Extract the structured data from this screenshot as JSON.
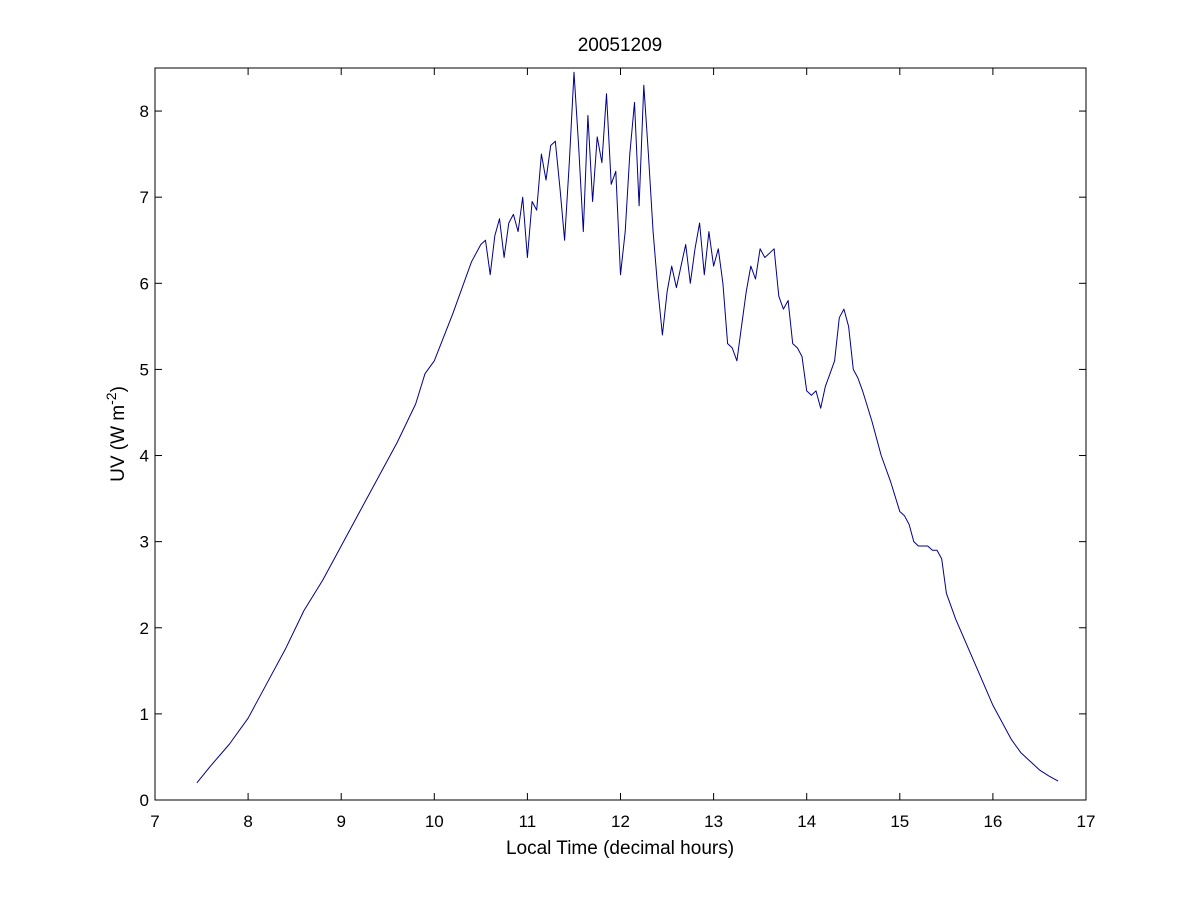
{
  "colors": {
    "series": "#00008b",
    "axes": "#000000",
    "background": "#ffffff"
  },
  "chart_data": {
    "type": "line",
    "title": "20051209",
    "xlabel": "Local Time (decimal hours)",
    "ylabel": "UV (W m",
    "ylabel_superscript": "-2",
    "ylabel_close": ")",
    "xlim": [
      7,
      17
    ],
    "ylim": [
      0,
      8.5
    ],
    "xticks": [
      7,
      8,
      9,
      10,
      11,
      12,
      13,
      14,
      15,
      16,
      17
    ],
    "yticks": [
      0,
      1,
      2,
      3,
      4,
      5,
      6,
      7,
      8
    ],
    "grid": false,
    "legend": "none",
    "series": [
      {
        "x": [
          7.45,
          7.6,
          7.8,
          8.0,
          8.2,
          8.4,
          8.6,
          8.8,
          9.0,
          9.2,
          9.4,
          9.6,
          9.8,
          9.9,
          10.0,
          10.2,
          10.3,
          10.4,
          10.5,
          10.55,
          10.6,
          10.65,
          10.7,
          10.75,
          10.8,
          10.85,
          10.9,
          10.95,
          11.0,
          11.05,
          11.1,
          11.15,
          11.2,
          11.25,
          11.3,
          11.35,
          11.4,
          11.45,
          11.5,
          11.55,
          11.6,
          11.65,
          11.7,
          11.75,
          11.8,
          11.85,
          11.9,
          11.95,
          12.0,
          12.05,
          12.1,
          12.15,
          12.2,
          12.25,
          12.3,
          12.35,
          12.4,
          12.45,
          12.5,
          12.55,
          12.6,
          12.65,
          12.7,
          12.75,
          12.8,
          12.85,
          12.9,
          12.95,
          13.0,
          13.05,
          13.1,
          13.15,
          13.2,
          13.25,
          13.3,
          13.35,
          13.4,
          13.45,
          13.5,
          13.55,
          13.6,
          13.65,
          13.7,
          13.75,
          13.8,
          13.85,
          13.9,
          13.95,
          14.0,
          14.05,
          14.1,
          14.15,
          14.2,
          14.25,
          14.3,
          14.35,
          14.4,
          14.45,
          14.5,
          14.55,
          14.6,
          14.7,
          14.8,
          14.9,
          15.0,
          15.05,
          15.1,
          15.15,
          15.2,
          15.25,
          15.3,
          15.35,
          15.4,
          15.45,
          15.5,
          15.6,
          15.7,
          15.8,
          15.9,
          16.0,
          16.1,
          16.2,
          16.3,
          16.4,
          16.5,
          16.6,
          16.7
        ],
        "y": [
          0.2,
          0.4,
          0.65,
          0.95,
          1.35,
          1.75,
          2.2,
          2.55,
          2.95,
          3.35,
          3.75,
          4.15,
          4.6,
          4.95,
          5.1,
          5.65,
          5.95,
          6.25,
          6.45,
          6.5,
          6.1,
          6.55,
          6.75,
          6.3,
          6.7,
          6.8,
          6.6,
          7.0,
          6.3,
          6.95,
          6.85,
          7.5,
          7.2,
          7.6,
          7.65,
          7.1,
          6.5,
          7.4,
          8.45,
          7.6,
          6.6,
          7.95,
          6.95,
          7.7,
          7.4,
          8.2,
          7.15,
          7.3,
          6.1,
          6.6,
          7.5,
          8.1,
          6.9,
          8.3,
          7.5,
          6.6,
          5.95,
          5.4,
          5.9,
          6.2,
          5.95,
          6.2,
          6.45,
          6.0,
          6.4,
          6.7,
          6.1,
          6.6,
          6.2,
          6.4,
          6.0,
          5.3,
          5.25,
          5.1,
          5.5,
          5.9,
          6.2,
          6.05,
          6.4,
          6.3,
          6.35,
          6.4,
          5.85,
          5.7,
          5.8,
          5.3,
          5.25,
          5.15,
          4.75,
          4.7,
          4.75,
          4.55,
          4.8,
          4.95,
          5.1,
          5.6,
          5.7,
          5.5,
          5.0,
          4.9,
          4.75,
          4.4,
          4.0,
          3.7,
          3.35,
          3.3,
          3.2,
          3.0,
          2.95,
          2.95,
          2.95,
          2.9,
          2.9,
          2.8,
          2.4,
          2.1,
          1.85,
          1.6,
          1.35,
          1.1,
          0.9,
          0.7,
          0.55,
          0.45,
          0.35,
          0.28,
          0.22
        ]
      }
    ]
  }
}
